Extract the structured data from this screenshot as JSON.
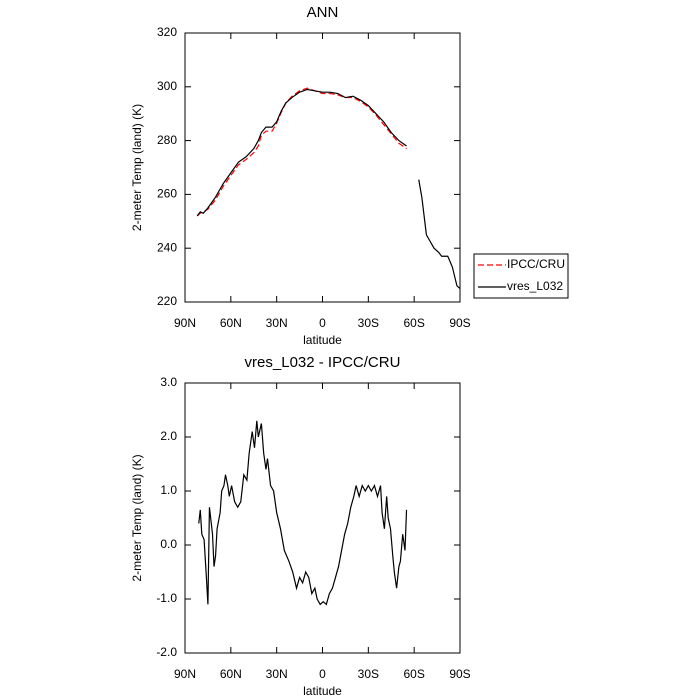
{
  "chart_data": [
    {
      "type": "line",
      "title": "ANN",
      "ylabel": "2-meter Temp (land) (K)",
      "xlabel": "latitude",
      "xlim": [
        90,
        -90
      ],
      "xticks": [
        {
          "value": 90,
          "label": "90N"
        },
        {
          "value": 60,
          "label": "60N"
        },
        {
          "value": 30,
          "label": "30N"
        },
        0,
        {
          "value": -30,
          "label": "30S"
        },
        {
          "value": -60,
          "label": "60S"
        },
        {
          "value": -90,
          "label": "90S"
        }
      ],
      "ylim": [
        220,
        320
      ],
      "yticks": [
        220,
        240,
        260,
        280,
        300,
        320
      ],
      "legend": "right",
      "x": [
        82,
        80,
        78,
        75,
        70,
        65,
        60,
        55,
        50,
        45,
        42,
        40,
        37,
        33,
        30,
        27,
        24,
        20,
        15,
        10,
        5,
        0,
        -5,
        -10,
        -15,
        -20,
        -25,
        -30,
        -35,
        -40,
        -45,
        -50,
        -55,
        -59,
        -63,
        -65,
        -68,
        -70,
        -73,
        -76,
        -78,
        -82,
        -85,
        -88,
        -90
      ],
      "series": [
        {
          "name": "IPCC/CRU",
          "color": "#ff0000",
          "dashed": true,
          "values": [
            252,
            253,
            253.5,
            254.5,
            258,
            263,
            267,
            271,
            273,
            275.5,
            278,
            282,
            283.5,
            283.5,
            286.5,
            290.5,
            294,
            296.5,
            298.5,
            299.5,
            298.5,
            297.5,
            297.5,
            297,
            296,
            296,
            294.5,
            292.5,
            289.5,
            286,
            282.5,
            279,
            277,
            null,
            null,
            null,
            null,
            null,
            null,
            null,
            null,
            null,
            null,
            null,
            null
          ]
        },
        {
          "name": "vres_L032",
          "color": "#000000",
          "dashed": false,
          "values": [
            252,
            253.5,
            253,
            255,
            259,
            264,
            268,
            272,
            274,
            277,
            280,
            283,
            285,
            285,
            287,
            291,
            294,
            296,
            298,
            299,
            298.5,
            298,
            298,
            297.5,
            296,
            296.5,
            295,
            293,
            290,
            287,
            283,
            280,
            278,
            null,
            265.5,
            259,
            245,
            243,
            240,
            238.5,
            237,
            237,
            233,
            226,
            225
          ]
        }
      ]
    },
    {
      "type": "line",
      "title": "vres_L032 - IPCC/CRU",
      "ylabel": "2-meter Temp (land) (K)",
      "xlabel": "latitude",
      "xlim": [
        90,
        -90
      ],
      "xticks": [
        {
          "value": 90,
          "label": "90N"
        },
        {
          "value": 60,
          "label": "60N"
        },
        {
          "value": 30,
          "label": "30N"
        },
        0,
        {
          "value": -30,
          "label": "30S"
        },
        {
          "value": -60,
          "label": "60S"
        },
        {
          "value": -90,
          "label": "90S"
        }
      ],
      "ylim": [
        -2,
        3
      ],
      "yticks": [
        {
          "value": -2,
          "label": "-2.0"
        },
        {
          "value": -1,
          "label": "-1.0"
        },
        {
          "value": 0,
          "label": "0.0"
        },
        {
          "value": 1,
          "label": "1.0"
        },
        {
          "value": 2,
          "label": "2.0"
        },
        {
          "value": 3,
          "label": "3.0"
        }
      ],
      "x": [
        81,
        80,
        79,
        77.5,
        76,
        75,
        74,
        72,
        71,
        70,
        69,
        67,
        66,
        64.5,
        63.5,
        62,
        61,
        59.5,
        57.5,
        55.5,
        53.5,
        51.5,
        49.5,
        48,
        46,
        44.5,
        43,
        42,
        40,
        38.5,
        37,
        36,
        34,
        32,
        30,
        27.5,
        25,
        22,
        19.5,
        17,
        15,
        13,
        11,
        9,
        7,
        5,
        3.5,
        1.5,
        -0.5,
        -2.5,
        -4.5,
        -6.5,
        -8.5,
        -10.5,
        -12.5,
        -14.5,
        -16.5,
        -18.5,
        -20.5,
        -22,
        -24,
        -26,
        -28,
        -30,
        -32,
        -34,
        -36,
        -38,
        -39,
        -40.5,
        -42,
        -43,
        -44.5,
        -46,
        -47,
        -48.5,
        -50,
        -51,
        -52.5,
        -54,
        -55
      ],
      "series": [
        {
          "color": "#000000",
          "dashed": false,
          "values": [
            0.4,
            0.65,
            0.2,
            0.1,
            -0.6,
            -1.1,
            0.7,
            0.2,
            -0.4,
            -0.2,
            0.3,
            0.6,
            1.0,
            1.1,
            1.3,
            1.1,
            0.9,
            1.1,
            0.8,
            0.7,
            0.8,
            1.3,
            1.2,
            1.7,
            2.1,
            1.8,
            2.3,
            2.0,
            2.25,
            1.7,
            1.4,
            1.6,
            1.1,
            1.0,
            0.6,
            0.3,
            -0.1,
            -0.3,
            -0.5,
            -0.8,
            -0.6,
            -0.7,
            -0.5,
            -0.6,
            -0.9,
            -0.8,
            -1.0,
            -1.1,
            -1.05,
            -1.1,
            -0.9,
            -0.8,
            -0.6,
            -0.4,
            -0.1,
            0.2,
            0.4,
            0.7,
            0.9,
            1.1,
            0.9,
            1.1,
            1.0,
            1.1,
            1.0,
            1.1,
            0.9,
            1.1,
            0.6,
            0.3,
            0.9,
            0.5,
            0.3,
            -0.2,
            -0.5,
            -0.8,
            -0.4,
            -0.3,
            0.2,
            -0.1,
            0.65
          ]
        }
      ]
    }
  ]
}
